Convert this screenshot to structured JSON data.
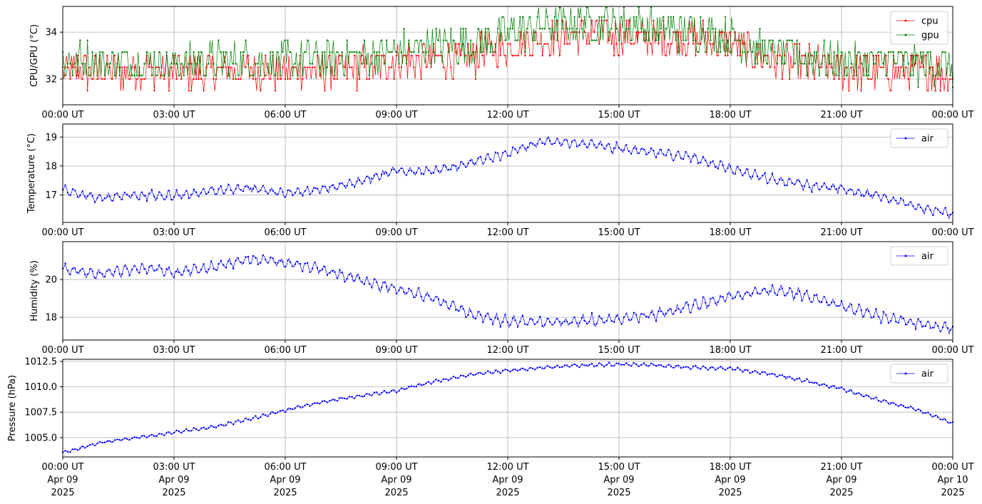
{
  "x_tick_labels": [
    "00:00 UT",
    "03:00 UT",
    "06:00 UT",
    "09:00 UT",
    "12:00 UT",
    "15:00 UT",
    "18:00 UT",
    "21:00 UT",
    "00:00 UT"
  ],
  "x_tick_dates": [
    [
      "Apr 09",
      "2025"
    ],
    [
      "Apr 09",
      "2025"
    ],
    [
      "Apr 09",
      "2025"
    ],
    [
      "Apr 09",
      "2025"
    ],
    [
      "Apr 09",
      "2025"
    ],
    [
      "Apr 09",
      "2025"
    ],
    [
      "Apr 09",
      "2025"
    ],
    [
      "Apr 09",
      "2025"
    ],
    [
      "Apr 10",
      "2025"
    ]
  ],
  "chart_data": [
    {
      "type": "line",
      "ylabel": "CPU/GPU (°C)",
      "xlim": [
        "2025-04-09 00:00",
        "2025-04-10 00:00"
      ],
      "ylim": [
        30.9,
        35.1
      ],
      "yticks": [
        32,
        34
      ],
      "ytick_labels": [
        "32",
        "34"
      ],
      "grid": true,
      "legend": "top-right",
      "x": [
        "00:00",
        "01:00",
        "02:00",
        "03:00",
        "04:00",
        "05:00",
        "06:00",
        "07:00",
        "08:00",
        "09:00",
        "10:00",
        "11:00",
        "12:00",
        "13:00",
        "14:00",
        "15:00",
        "16:00",
        "17:00",
        "18:00",
        "19:00",
        "20:00",
        "21:00",
        "22:00",
        "23:00",
        "24:00"
      ],
      "series": [
        {
          "name": "cpu",
          "color": "#ff0000",
          "values": [
            32.4,
            32.3,
            32.4,
            32.3,
            32.3,
            32.4,
            32.3,
            32.4,
            32.5,
            32.8,
            32.8,
            32.9,
            33.4,
            33.8,
            34.0,
            33.8,
            33.7,
            33.7,
            33.5,
            32.9,
            32.6,
            32.4,
            32.3,
            32.4,
            32.2
          ]
        },
        {
          "name": "gpu",
          "color": "#008000",
          "values": [
            32.6,
            32.6,
            32.6,
            32.5,
            32.6,
            32.6,
            32.6,
            32.7,
            32.8,
            33.0,
            33.2,
            33.4,
            33.8,
            34.1,
            34.3,
            34.3,
            34.0,
            33.9,
            33.6,
            33.0,
            32.8,
            32.6,
            32.6,
            32.5,
            32.4
          ]
        }
      ]
    },
    {
      "type": "line",
      "ylabel": "Temperature (°C)",
      "xlim": [
        "2025-04-09 00:00",
        "2025-04-10 00:00"
      ],
      "ylim": [
        16.05,
        19.45
      ],
      "yticks": [
        17,
        18,
        19
      ],
      "ytick_labels": [
        "17",
        "18",
        "19"
      ],
      "grid": true,
      "legend": "top-right",
      "x": [
        "00:00",
        "01:00",
        "02:00",
        "03:00",
        "04:00",
        "05:00",
        "06:00",
        "07:00",
        "08:00",
        "09:00",
        "10:00",
        "11:00",
        "12:00",
        "13:00",
        "14:00",
        "15:00",
        "16:00",
        "17:00",
        "18:00",
        "19:00",
        "20:00",
        "21:00",
        "22:00",
        "23:00",
        "24:00"
      ],
      "series": [
        {
          "name": "air",
          "color": "#0000ff",
          "values": [
            17.15,
            16.9,
            17.0,
            16.95,
            17.15,
            17.25,
            17.05,
            17.2,
            17.45,
            17.85,
            17.8,
            18.1,
            18.45,
            18.85,
            18.8,
            18.6,
            18.45,
            18.3,
            17.9,
            17.55,
            17.35,
            17.2,
            16.95,
            16.6,
            16.35
          ]
        }
      ]
    },
    {
      "type": "line",
      "ylabel": "Humidity (%)",
      "xlim": [
        "2025-04-09 00:00",
        "2025-04-10 00:00"
      ],
      "ylim": [
        16.8,
        22.0
      ],
      "yticks": [
        18,
        20
      ],
      "ytick_labels": [
        "18",
        "20"
      ],
      "grid": true,
      "legend": "top-right",
      "x": [
        "00:00",
        "01:00",
        "02:00",
        "03:00",
        "04:00",
        "05:00",
        "06:00",
        "07:00",
        "08:00",
        "09:00",
        "10:00",
        "11:00",
        "12:00",
        "13:00",
        "14:00",
        "15:00",
        "16:00",
        "17:00",
        "18:00",
        "19:00",
        "20:00",
        "21:00",
        "22:00",
        "23:00",
        "24:00"
      ],
      "series": [
        {
          "name": "air",
          "color": "#0000ff",
          "values": [
            20.5,
            20.3,
            20.6,
            20.4,
            20.6,
            21.1,
            20.9,
            20.5,
            20.0,
            19.5,
            19.0,
            18.2,
            17.8,
            17.7,
            17.8,
            17.9,
            18.2,
            18.6,
            19.1,
            19.4,
            19.2,
            18.6,
            18.1,
            17.7,
            17.4
          ]
        }
      ]
    },
    {
      "type": "line",
      "ylabel": "Pressure (hPa)",
      "xlim": [
        "2025-04-09 00:00",
        "2025-04-10 00:00"
      ],
      "ylim": [
        1003.1,
        1012.7
      ],
      "yticks": [
        1005.0,
        1007.5,
        1010.0,
        1012.5
      ],
      "ytick_labels": [
        "1005.0",
        "1007.5",
        "1010.0",
        "1012.5"
      ],
      "grid": true,
      "legend": "top-right",
      "x": [
        "00:00",
        "01:00",
        "02:00",
        "03:00",
        "04:00",
        "05:00",
        "06:00",
        "07:00",
        "08:00",
        "09:00",
        "10:00",
        "11:00",
        "12:00",
        "13:00",
        "14:00",
        "15:00",
        "16:00",
        "17:00",
        "18:00",
        "19:00",
        "20:00",
        "21:00",
        "22:00",
        "23:00",
        "24:00"
      ],
      "series": [
        {
          "name": "air",
          "color": "#0000ff",
          "values": [
            1003.5,
            1004.5,
            1005.0,
            1005.5,
            1006.0,
            1006.8,
            1007.7,
            1008.5,
            1009.1,
            1009.6,
            1010.5,
            1011.2,
            1011.6,
            1011.9,
            1012.1,
            1012.2,
            1012.1,
            1011.9,
            1011.8,
            1011.3,
            1010.6,
            1009.8,
            1008.7,
            1007.8,
            1006.4
          ]
        }
      ]
    }
  ]
}
